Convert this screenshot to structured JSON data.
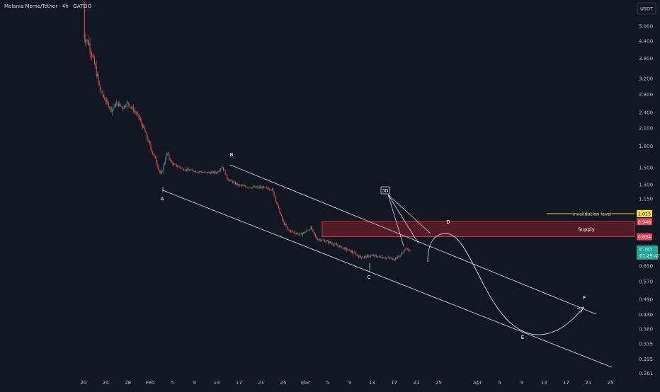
{
  "header": {
    "symbol_title": "Melania Meme/Tether · 4h · GATEIO",
    "currency_button": "USDT"
  },
  "colors": {
    "background": "#131722",
    "up_candle": "#26a69a",
    "down_candle": "#ef5350",
    "drawing_line": "#d1d4dc",
    "supply_fill": "#8b1e2c",
    "supply_border": "#e0455a",
    "invalidation_label": "#f5e04a",
    "current_price_badge": "#26a69a",
    "supply_price_badge": "#e0455a"
  },
  "chart_data": {
    "type": "candlestick",
    "y_scale": "log",
    "y_range": [
      0.25,
      6.0
    ],
    "y_ticks": [
      "5.000",
      "4.400",
      "3.800",
      "3.200",
      "2.800",
      "2.400",
      "2.100",
      "1.800",
      "1.500",
      "1.300",
      "1.150",
      "1.015",
      "0.948",
      "0.834",
      "0.747",
      "0.650",
      "0.570",
      "0.490",
      "0.430",
      "0.380",
      "0.335",
      "0.295",
      "0.261"
    ],
    "x_ticks": [
      "20",
      "24",
      "28",
      "Feb",
      "5",
      "9",
      "13",
      "17",
      "21",
      "25",
      "Mar",
      "5",
      "9",
      "13",
      "17",
      "21",
      "25",
      "Apr",
      "5",
      "9",
      "13",
      "17",
      "21",
      "25"
    ],
    "price_path": [
      [
        "Jan 20",
        6.0
      ],
      [
        "Jan 20",
        4.6
      ],
      [
        "Jan 21",
        4.3
      ],
      [
        "Jan 22",
        3.6
      ],
      [
        "Jan 23",
        2.9
      ],
      [
        "Jan 24",
        2.65
      ],
      [
        "Jan 25",
        2.45
      ],
      [
        "Jan 26",
        2.6
      ],
      [
        "Jan 27",
        2.5
      ],
      [
        "Jan 28",
        2.6
      ],
      [
        "Jan 29",
        2.45
      ],
      [
        "Jan 30",
        2.3
      ],
      [
        "Jan 31",
        2.05
      ],
      [
        "Feb 1",
        1.8
      ],
      [
        "Feb 2",
        1.6
      ],
      [
        "Feb 3",
        1.4
      ],
      [
        "Feb 4",
        1.7
      ],
      [
        "Feb 5",
        1.55
      ],
      [
        "Feb 7",
        1.48
      ],
      [
        "Feb 9",
        1.46
      ],
      [
        "Feb 11",
        1.44
      ],
      [
        "Feb 13",
        1.44
      ],
      [
        "Feb 14",
        1.52
      ],
      [
        "Feb 15",
        1.36
      ],
      [
        "Feb 17",
        1.29
      ],
      [
        "Feb 19",
        1.27
      ],
      [
        "Feb 21",
        1.27
      ],
      [
        "Feb 23",
        1.25
      ],
      [
        "Feb 25",
        0.94
      ],
      [
        "Feb 26",
        0.88
      ],
      [
        "Feb 28",
        0.85
      ],
      [
        "Mar 1",
        0.87
      ],
      [
        "Mar 2",
        0.9
      ],
      [
        "Mar 3",
        0.82
      ],
      [
        "Mar 5",
        0.8
      ],
      [
        "Mar 7",
        0.77
      ],
      [
        "Mar 9",
        0.74
      ],
      [
        "Mar 11",
        0.7
      ],
      [
        "Mar 13",
        0.71
      ],
      [
        "Mar 15",
        0.7
      ],
      [
        "Mar 17",
        0.69
      ],
      [
        "Mar 18",
        0.71
      ],
      [
        "Mar 19",
        0.75
      ],
      [
        "Mar 20",
        0.747
      ]
    ],
    "annotations": {
      "points": [
        {
          "label": "A",
          "x": "Feb 3",
          "y": 1.35
        },
        {
          "label": "B",
          "x": "Feb 14",
          "y": 1.53
        },
        {
          "label": "C",
          "x": "Mar 11",
          "y": 0.62
        },
        {
          "label": "D",
          "x": "Mar 24",
          "y": 0.92
        },
        {
          "label": "E",
          "x": "Apr 5",
          "y": 0.37
        },
        {
          "label": "F",
          "x": "Apr 17",
          "y": 0.47
        }
      ],
      "box_label": "3D",
      "supply_zone": {
        "label": "Supply",
        "top": 0.948,
        "bottom": 0.834
      },
      "invalidation": {
        "label": "invalidation level",
        "value": 1.015
      }
    },
    "price_badges": {
      "invalidation": "1.015",
      "supply_top": "0.948",
      "supply_bottom": "0.834",
      "current_price": "0.747",
      "countdown": "01:29:42"
    }
  }
}
